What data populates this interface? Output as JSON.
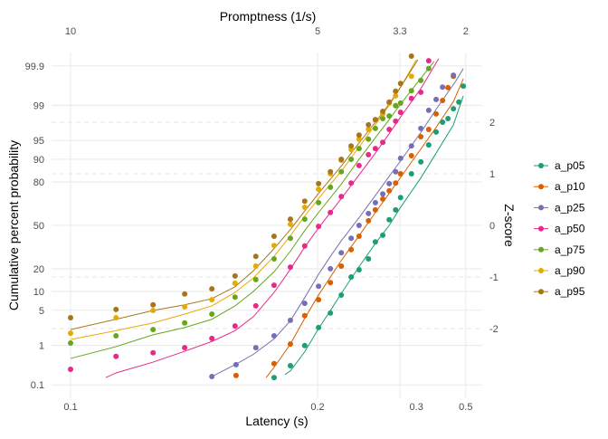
{
  "chart_data": {
    "type": "scatter",
    "xlabel": "Latency (s)",
    "x2label": "Promptness (1/s)",
    "ylabel": "Cumulative percent probability",
    "y2label": "Z-score",
    "x_scale": "reciprocal",
    "y_scale": "probit",
    "x_ticks": [
      "0.1",
      "0.2",
      "0.3",
      "0.5"
    ],
    "x_tick_values": [
      0.1,
      0.2,
      0.3333,
      0.5
    ],
    "x2_ticks": [
      "10",
      "5",
      "3.3",
      "2"
    ],
    "x2_tick_values": [
      10,
      5,
      3.3333,
      2
    ],
    "y_ticks": [
      "0.1",
      "1",
      "5",
      "10",
      "20",
      "50",
      "80",
      "90",
      "95",
      "99",
      "99.9"
    ],
    "y_tick_values": [
      0.1,
      1,
      5,
      10,
      20,
      50,
      80,
      90,
      95,
      99,
      99.9
    ],
    "y2_ticks": [
      "-2",
      "-1",
      "0",
      "1",
      "2"
    ],
    "y2_tick_values": [
      -2,
      -1,
      0,
      1,
      2
    ],
    "promptness_range": [
      10.42,
      1.7
    ],
    "zscore_range": [
      -3.36,
      3.36
    ],
    "grid": true,
    "legend_position": "right",
    "point_units": "[promptness (1/s), z-score]",
    "series": [
      {
        "name": "a_p05",
        "color": "#1B9E77",
        "points": [
          [
            5.88,
            -2.95
          ],
          [
            5.55,
            -2.72
          ],
          [
            5.26,
            -2.33
          ],
          [
            4.98,
            -1.98
          ],
          [
            4.74,
            -1.7
          ],
          [
            4.52,
            -1.35
          ],
          [
            4.32,
            -1.0
          ],
          [
            4.16,
            -0.86
          ],
          [
            3.97,
            -0.65
          ],
          [
            3.83,
            -0.32
          ],
          [
            3.68,
            -0.19
          ],
          [
            3.55,
            0.11
          ],
          [
            3.42,
            0.3
          ],
          [
            3.32,
            0.54
          ],
          [
            3.1,
            1.0
          ],
          [
            2.91,
            1.23
          ],
          [
            2.75,
            1.56
          ],
          [
            2.6,
            1.81
          ],
          [
            2.47,
            2.0
          ],
          [
            2.36,
            2.07
          ],
          [
            2.25,
            2.26
          ],
          [
            2.14,
            2.39
          ],
          [
            2.05,
            2.7
          ]
        ],
        "fit": [
          [
            5.66,
            -2.89
          ],
          [
            5.55,
            -2.82
          ],
          [
            5.26,
            -2.45
          ],
          [
            4.98,
            -2.0
          ],
          [
            4.74,
            -1.65
          ],
          [
            4.52,
            -1.32
          ],
          [
            4.16,
            -0.8
          ],
          [
            3.83,
            -0.35
          ],
          [
            3.55,
            0.0
          ],
          [
            3.32,
            0.35
          ],
          [
            2.91,
            0.92
          ],
          [
            2.6,
            1.4
          ],
          [
            2.25,
            1.95
          ],
          [
            2.05,
            2.51
          ]
        ]
      },
      {
        "name": "a_p10",
        "color": "#D95F02",
        "points": [
          [
            6.65,
            -2.91
          ],
          [
            5.88,
            -2.68
          ],
          [
            5.55,
            -2.3
          ],
          [
            5.26,
            -1.75
          ],
          [
            4.98,
            -1.44
          ],
          [
            4.74,
            -1.11
          ],
          [
            4.52,
            -0.79
          ],
          [
            4.32,
            -0.47
          ],
          [
            4.16,
            -0.21
          ],
          [
            3.97,
            0.09
          ],
          [
            3.83,
            0.3
          ],
          [
            3.68,
            0.51
          ],
          [
            3.55,
            0.67
          ],
          [
            3.42,
            0.82
          ],
          [
            3.32,
            1.0
          ],
          [
            3.1,
            1.35
          ],
          [
            2.91,
            1.72
          ],
          [
            2.75,
            1.86
          ],
          [
            2.6,
            2.16
          ],
          [
            2.47,
            2.42
          ],
          [
            2.36,
            2.67
          ],
          [
            2.25,
            2.89
          ]
        ],
        "fit": [
          [
            6.04,
            -2.95
          ],
          [
            5.88,
            -2.75
          ],
          [
            5.55,
            -2.3
          ],
          [
            5.26,
            -1.8
          ],
          [
            4.98,
            -1.35
          ],
          [
            4.74,
            -1.0
          ],
          [
            4.52,
            -0.68
          ],
          [
            4.16,
            -0.2
          ],
          [
            3.83,
            0.25
          ],
          [
            3.55,
            0.62
          ],
          [
            3.32,
            0.93
          ],
          [
            2.91,
            1.48
          ],
          [
            2.6,
            1.9
          ],
          [
            2.25,
            2.4
          ],
          [
            2.05,
            2.84
          ]
        ]
      },
      {
        "name": "a_p25",
        "color": "#7570B3",
        "points": [
          [
            7.14,
            -2.93
          ],
          [
            6.65,
            -2.7
          ],
          [
            6.25,
            -2.37
          ],
          [
            5.88,
            -2.14
          ],
          [
            5.55,
            -1.84
          ],
          [
            5.26,
            -1.51
          ],
          [
            4.98,
            -1.18
          ],
          [
            4.74,
            -0.84
          ],
          [
            4.52,
            -0.53
          ],
          [
            4.32,
            -0.25
          ],
          [
            4.16,
            0.0
          ],
          [
            3.97,
            0.23
          ],
          [
            3.83,
            0.44
          ],
          [
            3.68,
            0.61
          ],
          [
            3.55,
            0.81
          ],
          [
            3.42,
            1.04
          ],
          [
            3.32,
            1.3
          ],
          [
            3.1,
            1.54
          ],
          [
            2.91,
            1.88
          ],
          [
            2.75,
            2.23
          ],
          [
            2.6,
            2.44
          ],
          [
            2.47,
            2.68
          ],
          [
            2.25,
            2.91
          ]
        ],
        "fit": [
          [
            7.14,
            -2.93
          ],
          [
            6.67,
            -2.7
          ],
          [
            6.3,
            -2.5
          ],
          [
            5.88,
            -2.2
          ],
          [
            5.55,
            -1.85
          ],
          [
            5.26,
            -1.4
          ],
          [
            4.98,
            -0.95
          ],
          [
            4.74,
            -0.6
          ],
          [
            4.52,
            -0.3
          ],
          [
            4.16,
            0.15
          ],
          [
            3.83,
            0.58
          ],
          [
            3.55,
            0.95
          ],
          [
            3.32,
            1.25
          ],
          [
            2.91,
            1.8
          ],
          [
            2.6,
            2.25
          ],
          [
            2.2,
            2.8
          ],
          [
            2.05,
            3.04
          ]
        ]
      },
      {
        "name": "a_p50",
        "color": "#E7298A",
        "points": [
          [
            10,
            -2.79
          ],
          [
            9.08,
            -2.54
          ],
          [
            8.33,
            -2.47
          ],
          [
            7.69,
            -2.37
          ],
          [
            7.14,
            -2.19
          ],
          [
            6.67,
            -1.95
          ],
          [
            6.25,
            -1.56
          ],
          [
            5.88,
            -1.16
          ],
          [
            5.55,
            -0.81
          ],
          [
            5.26,
            -0.4
          ],
          [
            4.98,
            -0.02
          ],
          [
            4.74,
            0.25
          ],
          [
            4.52,
            0.56
          ],
          [
            4.32,
            0.82
          ],
          [
            4.16,
            1.16
          ],
          [
            3.97,
            1.37
          ],
          [
            3.83,
            1.49
          ],
          [
            3.68,
            1.61
          ],
          [
            3.55,
            1.86
          ],
          [
            3.42,
            2.02
          ],
          [
            3.32,
            2.19
          ],
          [
            3.1,
            2.46
          ],
          [
            2.91,
            2.58
          ],
          [
            2.75,
            3.19
          ]
        ],
        "fit": [
          [
            9.29,
            -2.95
          ],
          [
            9.08,
            -2.86
          ],
          [
            8.33,
            -2.65
          ],
          [
            7.69,
            -2.44
          ],
          [
            7.14,
            -2.25
          ],
          [
            6.67,
            -2.04
          ],
          [
            6.3,
            -1.77
          ],
          [
            5.88,
            -1.3
          ],
          [
            5.55,
            -0.85
          ],
          [
            5.26,
            -0.42
          ],
          [
            4.98,
            -0.05
          ],
          [
            4.52,
            0.52
          ],
          [
            4.16,
            0.98
          ],
          [
            3.83,
            1.4
          ],
          [
            3.55,
            1.78
          ],
          [
            3.32,
            2.1
          ],
          [
            2.91,
            2.65
          ],
          [
            2.55,
            3.23
          ]
        ]
      },
      {
        "name": "a_p75",
        "color": "#66A61E",
        "points": [
          [
            10,
            -2.28
          ],
          [
            9.08,
            -2.14
          ],
          [
            8.33,
            -2.02
          ],
          [
            7.69,
            -1.89
          ],
          [
            7.14,
            -1.72
          ],
          [
            6.67,
            -1.39
          ],
          [
            6.25,
            -1.05
          ],
          [
            5.88,
            -0.65
          ],
          [
            5.55,
            -0.25
          ],
          [
            5.26,
            0.12
          ],
          [
            4.98,
            0.44
          ],
          [
            4.74,
            0.74
          ],
          [
            4.52,
            1.04
          ],
          [
            4.32,
            1.28
          ],
          [
            4.16,
            1.49
          ],
          [
            3.97,
            1.67
          ],
          [
            3.83,
            1.88
          ],
          [
            3.68,
            2.07
          ],
          [
            3.55,
            2.12
          ],
          [
            3.42,
            2.32
          ],
          [
            3.32,
            2.37
          ],
          [
            3.1,
            2.61
          ],
          [
            2.91,
            2.81
          ],
          [
            2.75,
            3.04
          ]
        ],
        "fit": [
          [
            10,
            -2.58
          ],
          [
            9.08,
            -2.35
          ],
          [
            8.33,
            -2.12
          ],
          [
            7.69,
            -1.98
          ],
          [
            7.14,
            -1.82
          ],
          [
            6.67,
            -1.56
          ],
          [
            6.3,
            -1.28
          ],
          [
            5.88,
            -0.9
          ],
          [
            5.55,
            -0.5
          ],
          [
            5.26,
            -0.1
          ],
          [
            4.98,
            0.25
          ],
          [
            4.52,
            0.8
          ],
          [
            4.16,
            1.28
          ],
          [
            3.83,
            1.7
          ],
          [
            3.55,
            2.05
          ],
          [
            3.32,
            2.35
          ],
          [
            2.91,
            2.85
          ],
          [
            2.64,
            3.18
          ]
        ]
      },
      {
        "name": "a_p90",
        "color": "#E6AB02",
        "points": [
          [
            10,
            -2.09
          ],
          [
            9.08,
            -1.79
          ],
          [
            8.33,
            -1.65
          ],
          [
            7.69,
            -1.58
          ],
          [
            7.14,
            -1.44
          ],
          [
            6.67,
            -1.12
          ],
          [
            6.25,
            -0.79
          ],
          [
            5.88,
            -0.39
          ],
          [
            5.55,
            0.02
          ],
          [
            5.26,
            0.35
          ],
          [
            4.98,
            0.7
          ],
          [
            4.74,
            1.0
          ],
          [
            4.52,
            1.26
          ],
          [
            4.32,
            1.47
          ],
          [
            4.16,
            1.67
          ],
          [
            3.97,
            1.86
          ],
          [
            3.83,
            2.04
          ],
          [
            3.68,
            2.16
          ],
          [
            3.55,
            2.37
          ],
          [
            3.42,
            2.51
          ],
          [
            3.1,
            2.89
          ]
        ],
        "fit": [
          [
            10,
            -2.21
          ],
          [
            9.08,
            -2.04
          ],
          [
            8.33,
            -1.89
          ],
          [
            7.69,
            -1.72
          ],
          [
            7.14,
            -1.56
          ],
          [
            6.67,
            -1.3
          ],
          [
            6.3,
            -1.02
          ],
          [
            5.88,
            -0.6
          ],
          [
            5.55,
            -0.2
          ],
          [
            5.26,
            0.18
          ],
          [
            4.98,
            0.52
          ],
          [
            4.52,
            1.05
          ],
          [
            4.16,
            1.52
          ],
          [
            3.83,
            1.95
          ],
          [
            3.55,
            2.33
          ],
          [
            3.32,
            2.68
          ],
          [
            3.0,
            3.21
          ]
        ]
      },
      {
        "name": "a_p95",
        "color": "#A6761D",
        "points": [
          [
            10,
            -1.79
          ],
          [
            9.08,
            -1.63
          ],
          [
            8.33,
            -1.54
          ],
          [
            7.69,
            -1.33
          ],
          [
            7.14,
            -1.23
          ],
          [
            6.67,
            -0.98
          ],
          [
            6.25,
            -0.6
          ],
          [
            5.88,
            -0.21
          ],
          [
            5.55,
            0.12
          ],
          [
            5.26,
            0.47
          ],
          [
            4.98,
            0.81
          ],
          [
            4.74,
            1.04
          ],
          [
            4.52,
            1.28
          ],
          [
            4.32,
            1.54
          ],
          [
            4.16,
            1.75
          ],
          [
            3.97,
            1.95
          ],
          [
            3.83,
            2.05
          ],
          [
            3.68,
            2.21
          ],
          [
            3.55,
            2.39
          ],
          [
            3.42,
            2.6
          ],
          [
            3.32,
            2.75
          ],
          [
            3.1,
            3.28
          ]
        ],
        "fit": [
          [
            10,
            -2.02
          ],
          [
            9.08,
            -1.82
          ],
          [
            8.33,
            -1.65
          ],
          [
            7.69,
            -1.54
          ],
          [
            7.14,
            -1.42
          ],
          [
            6.67,
            -1.19
          ],
          [
            6.3,
            -0.88
          ],
          [
            5.88,
            -0.45
          ],
          [
            5.55,
            -0.08
          ],
          [
            5.26,
            0.28
          ],
          [
            4.98,
            0.62
          ],
          [
            4.52,
            1.15
          ],
          [
            4.16,
            1.6
          ],
          [
            3.83,
            2.0
          ],
          [
            3.55,
            2.35
          ],
          [
            3.32,
            2.68
          ],
          [
            2.97,
            3.21
          ]
        ]
      }
    ]
  }
}
